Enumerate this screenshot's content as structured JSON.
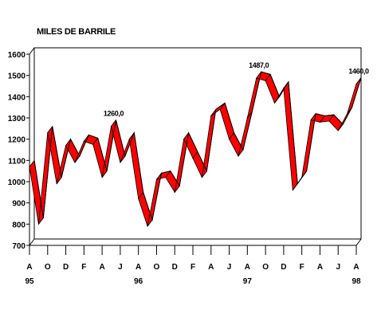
{
  "chart_data": {
    "type": "line",
    "title": "MILES DE BARRILE",
    "xlabel": "",
    "ylabel": "",
    "ylim": [
      700,
      1600
    ],
    "y_ticks": [
      "700",
      "800",
      "900",
      "1000",
      "1100",
      "1200",
      "1300",
      "1400",
      "1500",
      "1600"
    ],
    "y_tick_values": [
      700,
      800,
      900,
      1000,
      1100,
      1200,
      1300,
      1400,
      1500,
      1600
    ],
    "x_month_labels": [
      "A",
      "O",
      "D",
      "F",
      "A",
      "J",
      "A",
      "O",
      "D",
      "F",
      "A",
      "J",
      "A",
      "O",
      "D",
      "F",
      "A",
      "J",
      "A"
    ],
    "x_year_labels": [
      {
        "label": "95",
        "month_index": 0
      },
      {
        "label": "96",
        "month_index": 12
      },
      {
        "label": "97",
        "month_index": 24
      },
      {
        "label": "98",
        "month_index": 36
      }
    ],
    "series": [
      {
        "color": "#ff0000",
        "values": [
          1070,
          800,
          1230,
          990,
          1170,
          1090,
          1190,
          1175,
          1020,
          1260,
          1090,
          1200,
          920,
          790,
          1010,
          1020,
          950,
          1200,
          1110,
          1020,
          1310,
          1340,
          1200,
          1120,
          1300,
          1487,
          1475,
          1370,
          1440,
          960,
          1020,
          1290,
          1280,
          1285,
          1240,
          1320,
          1460
        ]
      }
    ],
    "annotations": [
      {
        "text": "1260,0",
        "index": 9
      },
      {
        "text": "1487,0",
        "index": 25
      },
      {
        "text": "1460,0",
        "index": 36
      }
    ],
    "grid": false,
    "legend": "none"
  }
}
